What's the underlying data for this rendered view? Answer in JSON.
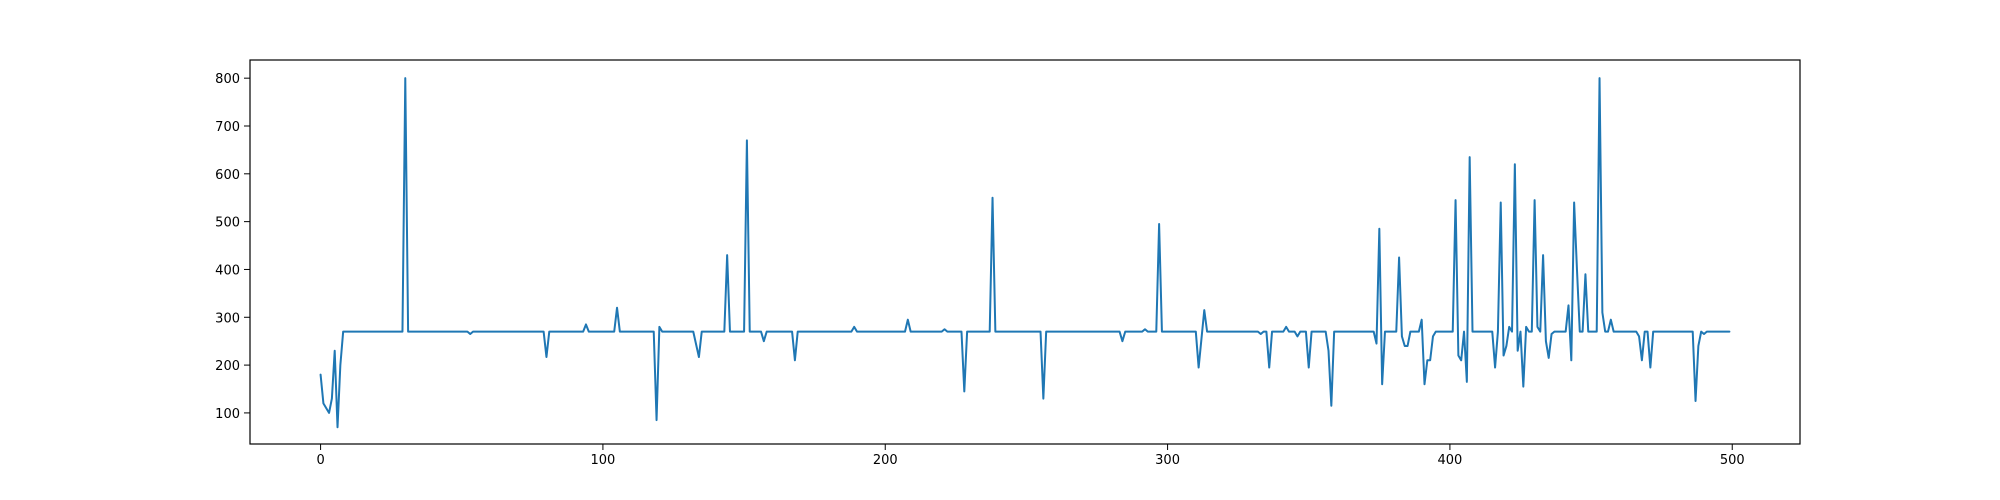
{
  "chart_data": {
    "type": "line",
    "title": "",
    "xlabel": "",
    "ylabel": "",
    "xlim": [
      -25,
      524
    ],
    "ylim": [
      35,
      838
    ],
    "xticks": [
      0,
      100,
      200,
      300,
      400,
      500
    ],
    "yticks": [
      100,
      200,
      300,
      400,
      500,
      600,
      700,
      800
    ],
    "grid": false,
    "legend": "none",
    "series": [
      {
        "color": "#1f77b4",
        "points": [
          [
            0,
            180
          ],
          [
            1,
            120
          ],
          [
            2,
            110
          ],
          [
            3,
            100
          ],
          [
            4,
            130
          ],
          [
            5,
            230
          ],
          [
            6,
            70
          ],
          [
            7,
            200
          ],
          [
            8,
            270
          ],
          [
            29,
            270
          ],
          [
            30,
            800
          ],
          [
            31,
            270
          ],
          [
            52,
            270
          ],
          [
            53,
            265
          ],
          [
            54,
            270
          ],
          [
            79,
            270
          ],
          [
            80,
            217
          ],
          [
            81,
            270
          ],
          [
            93,
            270
          ],
          [
            94,
            285
          ],
          [
            95,
            270
          ],
          [
            104,
            270
          ],
          [
            105,
            320
          ],
          [
            106,
            270
          ],
          [
            118,
            270
          ],
          [
            119,
            85
          ],
          [
            120,
            280
          ],
          [
            121,
            270
          ],
          [
            132,
            270
          ],
          [
            134,
            217
          ],
          [
            135,
            270
          ],
          [
            143,
            270
          ],
          [
            144,
            430
          ],
          [
            145,
            270
          ],
          [
            150,
            270
          ],
          [
            151,
            670
          ],
          [
            152,
            270
          ],
          [
            156,
            270
          ],
          [
            157,
            250
          ],
          [
            158,
            270
          ],
          [
            167,
            270
          ],
          [
            168,
            210
          ],
          [
            169,
            270
          ],
          [
            188,
            270
          ],
          [
            189,
            280
          ],
          [
            190,
            270
          ],
          [
            207,
            270
          ],
          [
            208,
            295
          ],
          [
            209,
            270
          ],
          [
            220,
            270
          ],
          [
            221,
            275
          ],
          [
            222,
            270
          ],
          [
            227,
            270
          ],
          [
            228,
            145
          ],
          [
            229,
            270
          ],
          [
            237,
            270
          ],
          [
            238,
            550
          ],
          [
            239,
            270
          ],
          [
            255,
            270
          ],
          [
            256,
            130
          ],
          [
            257,
            270
          ],
          [
            283,
            270
          ],
          [
            284,
            250
          ],
          [
            285,
            270
          ],
          [
            291,
            270
          ],
          [
            292,
            275
          ],
          [
            293,
            270
          ],
          [
            296,
            270
          ],
          [
            297,
            495
          ],
          [
            298,
            270
          ],
          [
            310,
            270
          ],
          [
            311,
            195
          ],
          [
            313,
            315
          ],
          [
            314,
            270
          ],
          [
            332,
            270
          ],
          [
            333,
            265
          ],
          [
            334,
            270
          ],
          [
            335,
            270
          ],
          [
            336,
            195
          ],
          [
            337,
            270
          ],
          [
            341,
            270
          ],
          [
            342,
            280
          ],
          [
            343,
            270
          ],
          [
            345,
            270
          ],
          [
            346,
            260
          ],
          [
            347,
            270
          ],
          [
            349,
            270
          ],
          [
            350,
            195
          ],
          [
            351,
            270
          ],
          [
            356,
            270
          ],
          [
            357,
            230
          ],
          [
            358,
            115
          ],
          [
            359,
            270
          ],
          [
            373,
            270
          ],
          [
            374,
            245
          ],
          [
            375,
            485
          ],
          [
            376,
            160
          ],
          [
            377,
            270
          ],
          [
            381,
            270
          ],
          [
            382,
            425
          ],
          [
            383,
            260
          ],
          [
            384,
            240
          ],
          [
            385,
            240
          ],
          [
            386,
            270
          ],
          [
            389,
            270
          ],
          [
            390,
            295
          ],
          [
            391,
            160
          ],
          [
            392,
            210
          ],
          [
            393,
            210
          ],
          [
            394,
            260
          ],
          [
            395,
            270
          ],
          [
            401,
            270
          ],
          [
            402,
            545
          ],
          [
            403,
            220
          ],
          [
            404,
            210
          ],
          [
            405,
            270
          ],
          [
            406,
            165
          ],
          [
            407,
            635
          ],
          [
            408,
            270
          ],
          [
            415,
            270
          ],
          [
            416,
            195
          ],
          [
            417,
            270
          ],
          [
            418,
            540
          ],
          [
            419,
            220
          ],
          [
            420,
            240
          ],
          [
            421,
            280
          ],
          [
            422,
            270
          ],
          [
            423,
            620
          ],
          [
            424,
            230
          ],
          [
            425,
            270
          ],
          [
            426,
            155
          ],
          [
            427,
            280
          ],
          [
            428,
            270
          ],
          [
            429,
            270
          ],
          [
            430,
            545
          ],
          [
            431,
            280
          ],
          [
            432,
            270
          ],
          [
            433,
            430
          ],
          [
            434,
            250
          ],
          [
            435,
            215
          ],
          [
            436,
            265
          ],
          [
            437,
            270
          ],
          [
            441,
            270
          ],
          [
            442,
            325
          ],
          [
            443,
            210
          ],
          [
            444,
            540
          ],
          [
            445,
            400
          ],
          [
            446,
            270
          ],
          [
            447,
            270
          ],
          [
            448,
            390
          ],
          [
            449,
            270
          ],
          [
            450,
            270
          ],
          [
            451,
            270
          ],
          [
            452,
            270
          ],
          [
            453,
            800
          ],
          [
            454,
            310
          ],
          [
            455,
            270
          ],
          [
            456,
            270
          ],
          [
            457,
            295
          ],
          [
            458,
            270
          ],
          [
            466,
            270
          ],
          [
            467,
            260
          ],
          [
            468,
            210
          ],
          [
            469,
            270
          ],
          [
            470,
            270
          ],
          [
            471,
            195
          ],
          [
            472,
            270
          ],
          [
            486,
            270
          ],
          [
            487,
            125
          ],
          [
            488,
            240
          ],
          [
            489,
            270
          ],
          [
            490,
            265
          ],
          [
            491,
            270
          ],
          [
            499,
            270
          ]
        ]
      }
    ]
  }
}
